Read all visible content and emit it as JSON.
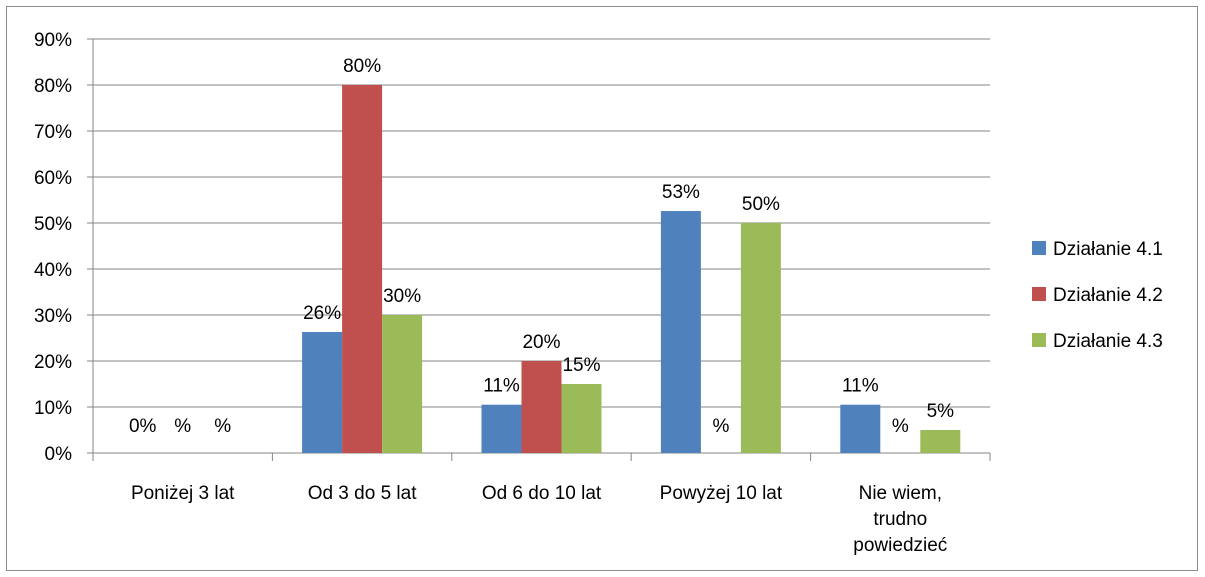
{
  "chart_data": {
    "type": "bar",
    "categories": [
      "Poniżej 3 lat",
      "Od 3 do 5 lat",
      "Od 6 do 10 lat",
      "Powyżej 10 lat",
      "Nie wiem, trudno powiedzieć"
    ],
    "series": [
      {
        "name": "Działanie 4.1",
        "color": "#4f81bd",
        "values": [
          0,
          26.3,
          10.5,
          52.6,
          10.5
        ],
        "labels": [
          "0%",
          "26%",
          "11%",
          "53%",
          "11%"
        ]
      },
      {
        "name": "Działanie 4.2",
        "color": "#c0504d",
        "values": [
          0,
          80,
          20,
          0,
          0
        ],
        "labels": [
          "%",
          "80%",
          "20%",
          "%",
          "%"
        ]
      },
      {
        "name": "Działanie 4.3",
        "color": "#9bbb59",
        "values": [
          0,
          30,
          15,
          50,
          5
        ],
        "labels": [
          "%",
          "30%",
          "15%",
          "50%",
          "5%"
        ]
      }
    ],
    "ylim": [
      0,
      90
    ],
    "y_ticks": [
      "0%",
      "10%",
      "20%",
      "30%",
      "40%",
      "50%",
      "60%",
      "70%",
      "80%",
      "90%"
    ],
    "grid": true,
    "legend_position": "right"
  }
}
